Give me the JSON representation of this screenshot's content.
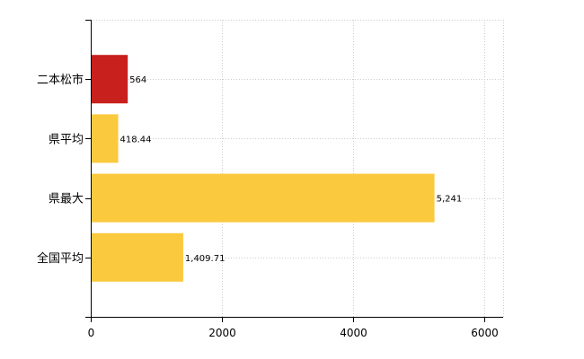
{
  "chart_data": {
    "type": "bar",
    "orientation": "horizontal",
    "categories": [
      "二本松市",
      "県平均",
      "県最大",
      "全国平均"
    ],
    "values": [
      564,
      418.44,
      5241,
      1409.71
    ],
    "data_labels": [
      "564",
      "418.44",
      "5,241",
      "1,409.71"
    ],
    "colors": [
      "#c8201c",
      "#fbc93d",
      "#fbc93d",
      "#fbc93d"
    ],
    "x_ticks": [
      0,
      2000,
      4000,
      6000
    ],
    "x_tick_labels": [
      "0",
      "2000",
      "4000",
      "6000"
    ],
    "xlim": [
      0,
      6000
    ],
    "grid": true,
    "title": "",
    "xlabel": "",
    "ylabel": ""
  }
}
